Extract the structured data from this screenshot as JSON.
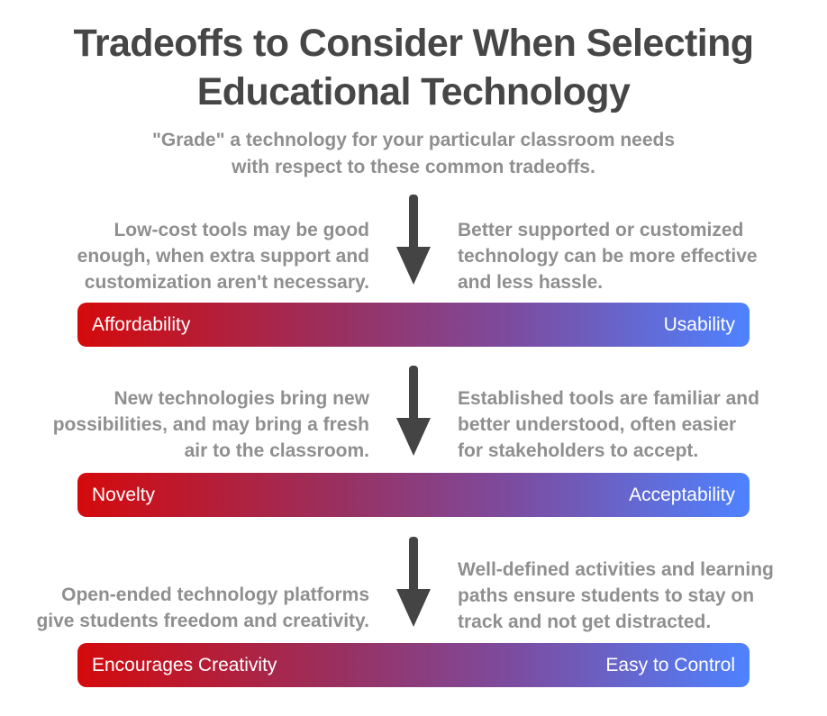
{
  "title": {
    "line1": "Tradeoffs to Consider When Selecting",
    "line2": "Educational Technology"
  },
  "subtitle": {
    "line1": "\"Grade\" a technology for your particular classroom needs",
    "line2": "with respect to these common tradeoffs."
  },
  "tradeoffs": [
    {
      "left_text": [
        "Low-cost tools may be good",
        "enough, when extra support and",
        "customization aren't necessary."
      ],
      "right_text": [
        "Better supported or customized",
        "technology can be more effective",
        "and less hassle."
      ],
      "left_label": "Affordability",
      "right_label": "Usability"
    },
    {
      "left_text": [
        "New technologies bring new",
        "possibilities, and may bring a fresh",
        "air to the classroom."
      ],
      "right_text": [
        "Established tools are familiar and",
        "better understood, often easier",
        "for stakeholders to accept."
      ],
      "left_label": "Novelty",
      "right_label": "Acceptability"
    },
    {
      "left_text": [
        "Open-ended technology platforms",
        "give students freedom and creativity."
      ],
      "right_text": [
        "Well-defined activities and learning",
        "paths ensure students to stay on",
        "track and not get distracted."
      ],
      "left_label": "Encourages Creativity",
      "right_label": "Easy to Control"
    }
  ],
  "colors": {
    "title": "#464646",
    "text": "#8f8f8f",
    "arrow": "#444444",
    "bar_start": "#d40a0c",
    "bar_end": "#4e82ff"
  }
}
